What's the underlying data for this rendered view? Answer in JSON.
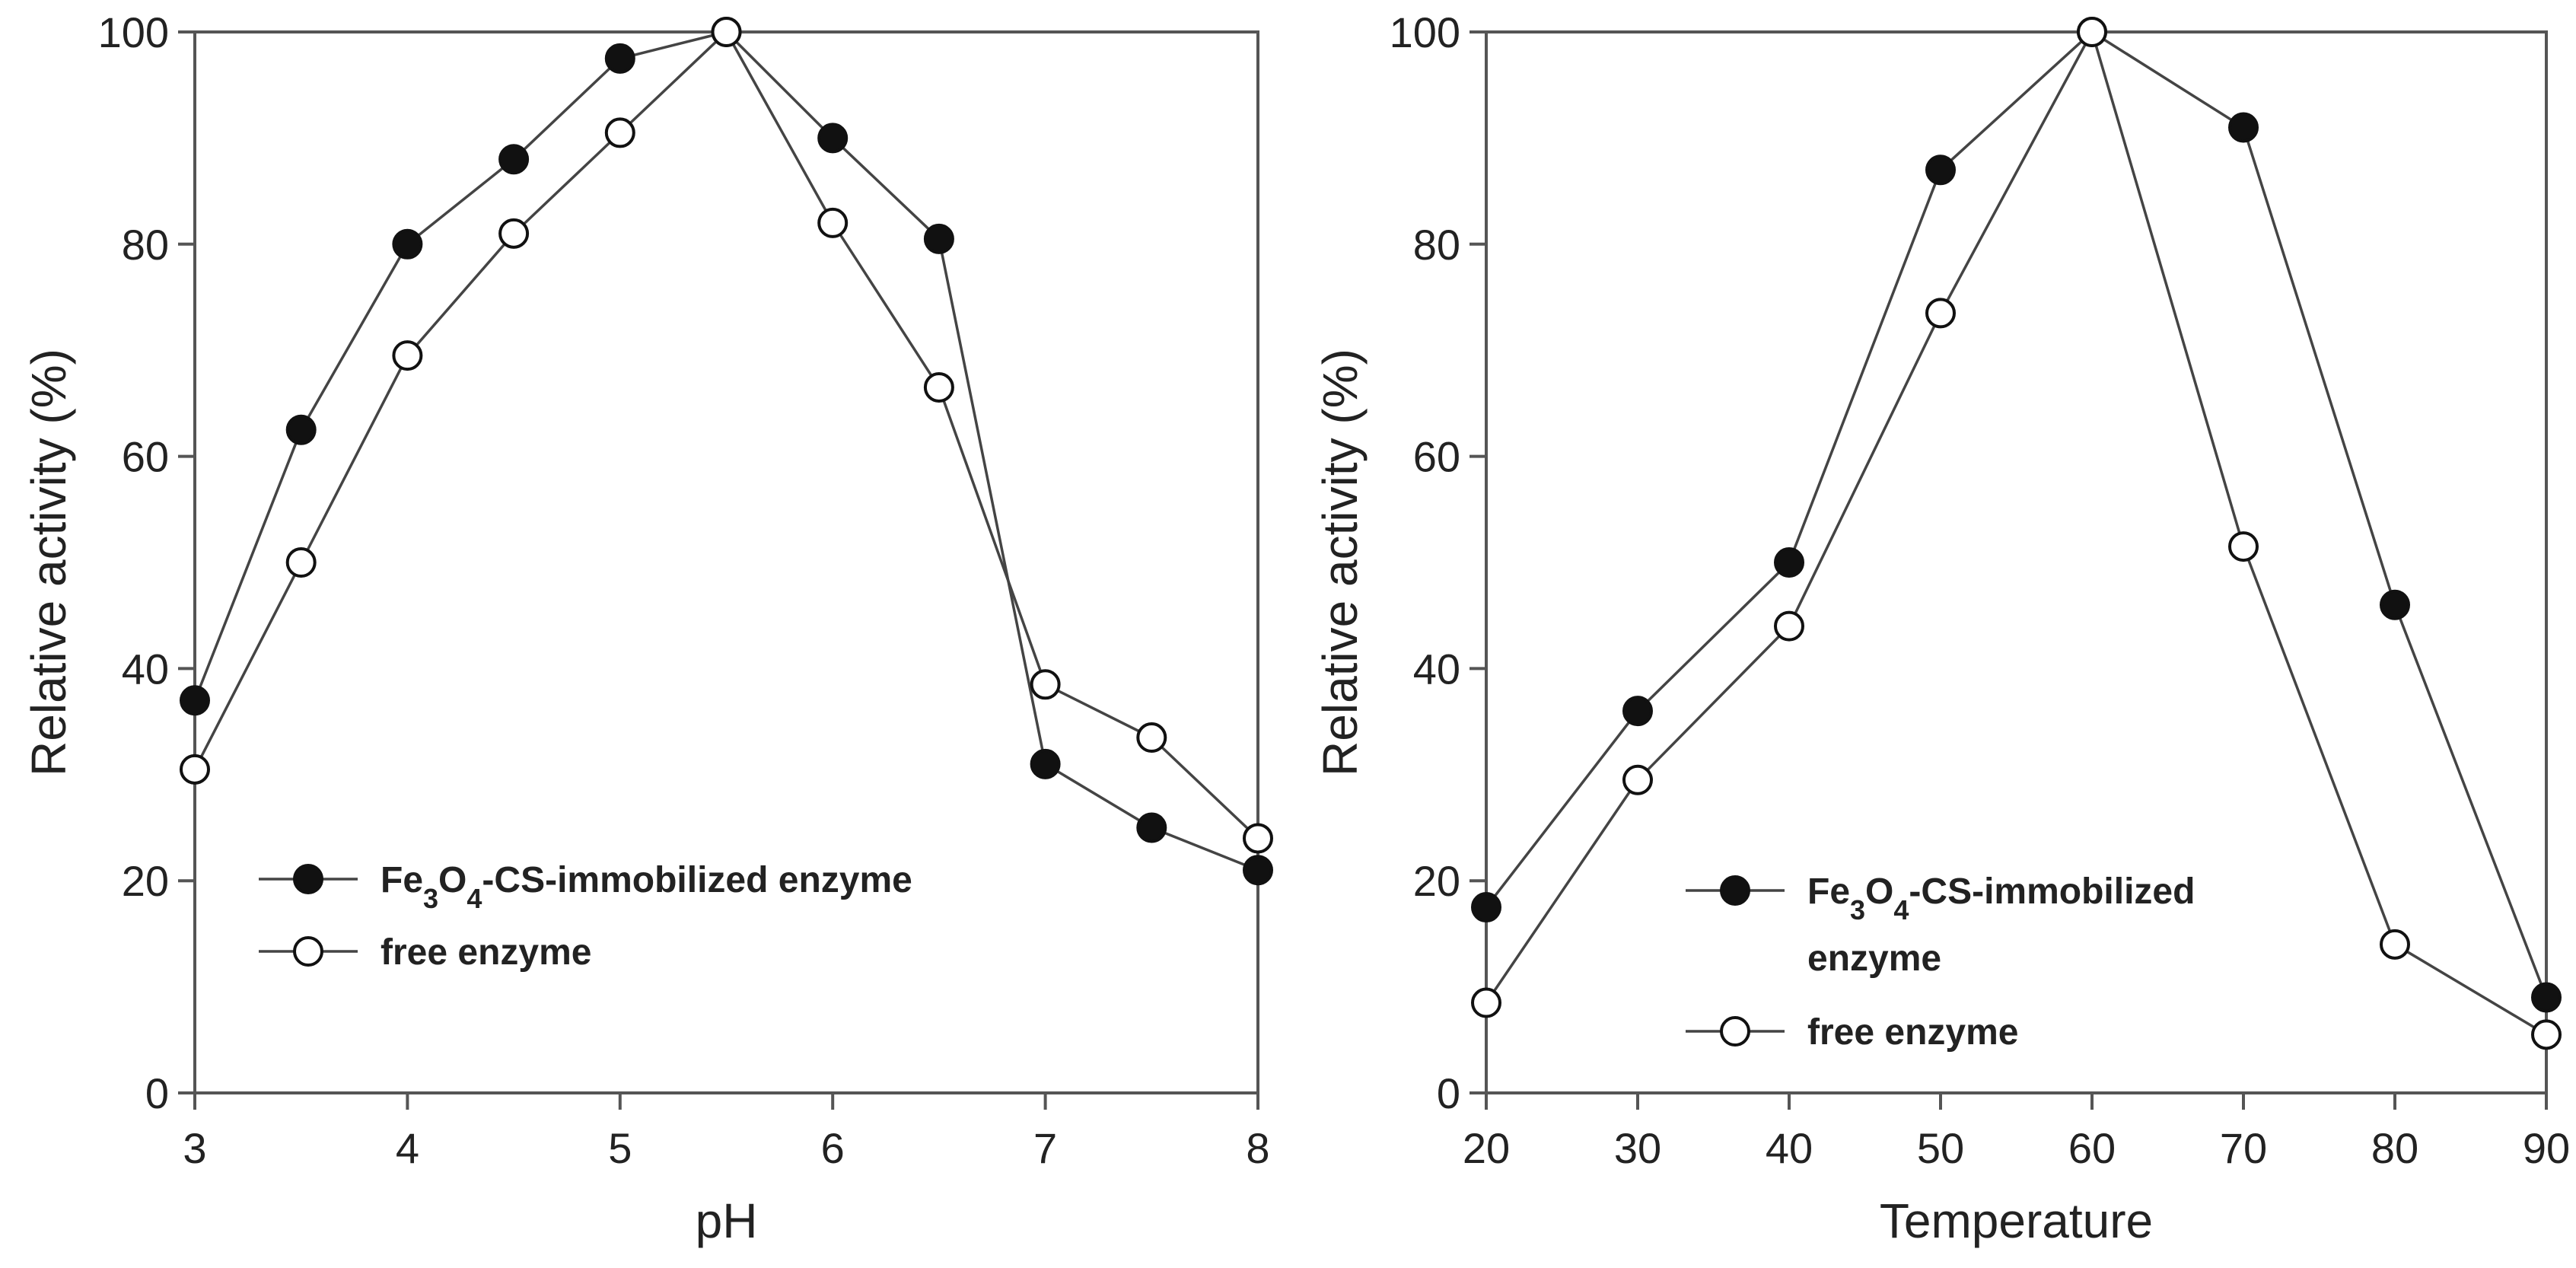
{
  "chart_data": [
    {
      "type": "line",
      "xlabel": "pH",
      "ylabel": "Relative activity (%)",
      "xlim": [
        3,
        8
      ],
      "ylim": [
        0,
        100
      ],
      "xticks": [
        3,
        4,
        5,
        6,
        7,
        8
      ],
      "yticks": [
        0,
        20,
        40,
        60,
        80,
        100
      ],
      "grid": false,
      "legend_position": "bottom-left",
      "series": [
        {
          "name": "Fe3O4-CS-immobilized enzyme",
          "legend_label": {
            "pre": "Fe",
            "sub1": "3",
            "mid": "O",
            "sub2": "4",
            "post": "-CS-immobilized enzyme"
          },
          "marker": "filled-circle",
          "x": [
            3,
            3.5,
            4,
            4.5,
            5,
            5.5,
            6,
            6.5,
            7,
            7.5,
            8
          ],
          "y": [
            37,
            62.5,
            80,
            88,
            97.5,
            100,
            90,
            80.5,
            31,
            25,
            21
          ]
        },
        {
          "name": "free enzyme",
          "legend_label": {
            "text": "free enzyme"
          },
          "marker": "open-circle",
          "x": [
            3,
            3.5,
            4,
            4.5,
            5,
            5.5,
            6,
            6.5,
            7,
            7.5,
            8
          ],
          "y": [
            30.5,
            50,
            69.5,
            81,
            90.5,
            100,
            82,
            66.5,
            38.5,
            33.5,
            24
          ]
        }
      ]
    },
    {
      "type": "line",
      "xlabel": "Temperature",
      "ylabel": "Relative activity (%)",
      "xlim": [
        20,
        90
      ],
      "ylim": [
        0,
        100
      ],
      "xticks": [
        20,
        30,
        40,
        50,
        60,
        70,
        80,
        90
      ],
      "yticks": [
        0,
        20,
        40,
        60,
        80,
        100
      ],
      "grid": false,
      "legend_position": "bottom-left",
      "series": [
        {
          "name": "Fe3O4-CS-immobilized enzyme",
          "legend_label": {
            "pre": "Fe",
            "sub1": "3",
            "mid": "O",
            "sub2": "4",
            "post": "-CS-immobilized",
            "line2": "enzyme"
          },
          "marker": "filled-circle",
          "x": [
            20,
            30,
            40,
            50,
            60,
            70,
            80,
            90
          ],
          "y": [
            17.5,
            36,
            50,
            87,
            100,
            91,
            46,
            9
          ]
        },
        {
          "name": "free enzyme",
          "legend_label": {
            "text": "free enzyme"
          },
          "marker": "open-circle",
          "x": [
            20,
            30,
            40,
            50,
            60,
            70,
            80,
            90
          ],
          "y": [
            8.5,
            29.5,
            44,
            73.5,
            100,
            51.5,
            14,
            5.5
          ]
        }
      ]
    }
  ],
  "colors": {
    "line": "#444444",
    "marker_fill": "#111111",
    "open_fill": "#ffffff"
  }
}
